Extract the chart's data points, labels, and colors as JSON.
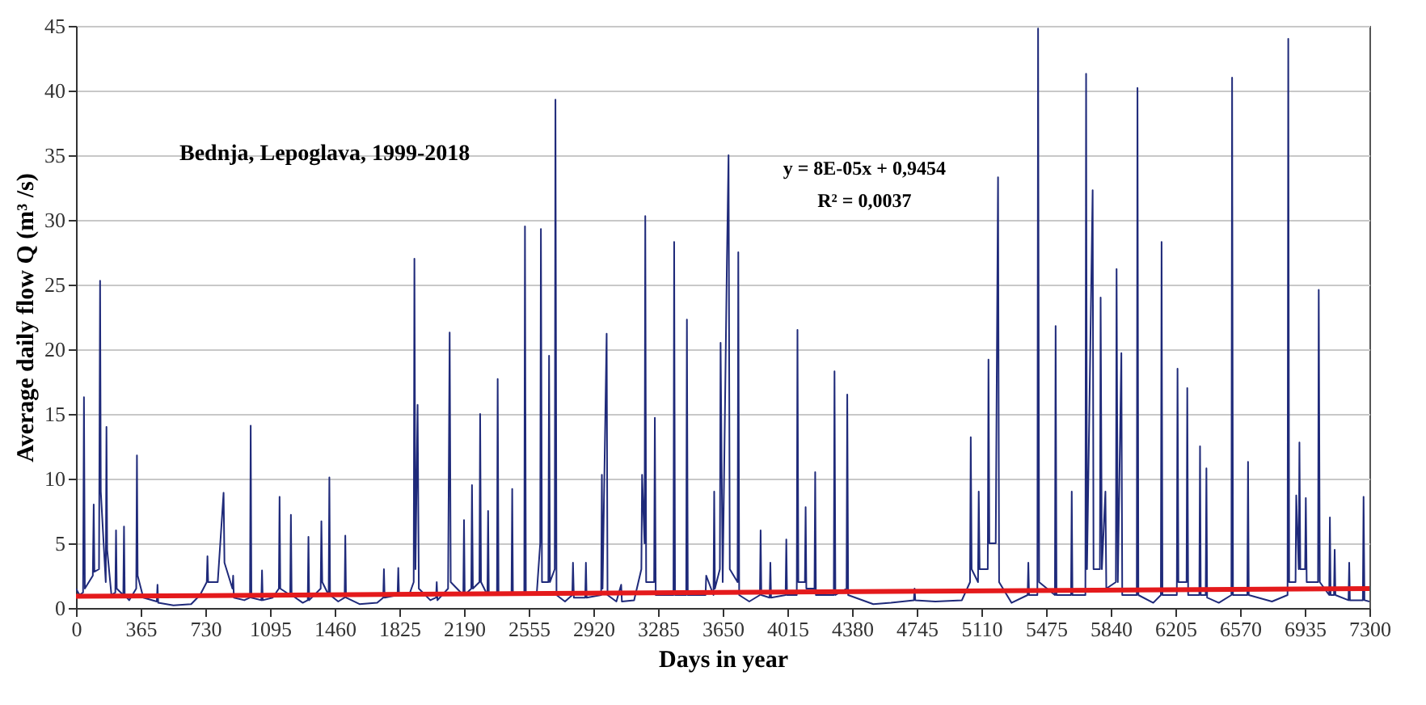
{
  "chart_data": {
    "type": "line",
    "xlabel": "Days in year",
    "ylabel": "Average daily flow Q (m³ /s)",
    "xlim": [
      0,
      7300
    ],
    "xticks": [
      0,
      365,
      730,
      1095,
      1460,
      1825,
      2190,
      2555,
      2920,
      3285,
      3650,
      4015,
      4380,
      4745,
      5110,
      5475,
      5840,
      6205,
      6570,
      6935,
      7300
    ],
    "ylim": [
      0,
      45
    ],
    "yticks": [
      0,
      5,
      10,
      15,
      20,
      25,
      30,
      35,
      40,
      45
    ],
    "grid": "y",
    "annotations": [
      "Bednja, Lepoglava, 1999-2018",
      "y = 8E-05x + 0,9454",
      "R² = 0,0037"
    ],
    "series": [
      {
        "type": "line",
        "color": "#1f2a7a",
        "x": [
          0,
          20,
          40,
          45,
          50,
          95,
          100,
          104,
          130,
          136,
          140,
          168,
          172,
          176,
          200,
          222,
          226,
          230,
          267,
          271,
          275,
          300,
          340,
          344,
          348,
          380,
          456,
          460,
          464,
          550,
          650,
          700,
          738,
          742,
          746,
          800,
          833,
          838,
          883,
          887,
          891,
          950,
          982,
          986,
          990,
          1046,
          1050,
          1054,
          1110,
          1145,
          1149,
          1153,
          1209,
          1213,
          1217,
          1280,
          1308,
          1312,
          1316,
          1381,
          1385,
          1390,
          1426,
          1430,
          1434,
          1480,
          1516,
          1520,
          1524,
          1600,
          1700,
          1734,
          1738,
          1742,
          1815,
          1819,
          1823,
          1880,
          1906,
          1910,
          1916,
          1928,
          1935,
          2000,
          2032,
          2036,
          2040,
          2100,
          2109,
          2115,
          2186,
          2190,
          2194,
          2231,
          2235,
          2240,
          2277,
          2281,
          2286,
          2322,
          2326,
          2330,
          2376,
          2380,
          2385,
          2458,
          2462,
          2466,
          2530,
          2534,
          2539,
          2600,
          2620,
          2624,
          2630,
          2666,
          2670,
          2675,
          2702,
          2706,
          2712,
          2760,
          2801,
          2805,
          2810,
          2874,
          2878,
          2882,
          2964,
          2968,
          2972,
          2995,
          3000,
          3050,
          3077,
          3081,
          3150,
          3191,
          3195,
          3209,
          3213,
          3218,
          3263,
          3267,
          3272,
          3372,
          3376,
          3381,
          3444,
          3448,
          3453,
          3553,
          3557,
          3598,
          3602,
          3606,
          3634,
          3638,
          3650,
          3674,
          3683,
          3690,
          3734,
          3738,
          3743,
          3800,
          3860,
          3864,
          3868,
          3915,
          3919,
          3923,
          4005,
          4009,
          4013,
          4068,
          4072,
          4077,
          4114,
          4118,
          4122,
          4168,
          4172,
          4176,
          4277,
          4281,
          4286,
          4349,
          4353,
          4358,
          4500,
          4600,
          4729,
          4733,
          4737,
          4850,
          5000,
          5046,
          5050,
          5055,
          5091,
          5095,
          5100,
          5146,
          5150,
          5155,
          5191,
          5195,
          5204,
          5210,
          5280,
          5371,
          5375,
          5379,
          5426,
          5430,
          5436,
          5525,
          5529,
          5534,
          5616,
          5620,
          5624,
          5697,
          5701,
          5706,
          5738,
          5743,
          5779,
          5783,
          5790,
          5810,
          5815,
          5869,
          5873,
          5880,
          5900,
          5905,
          5987,
          5991,
          5996,
          6080,
          6123,
          6127,
          6132,
          6213,
          6217,
          6222,
          6268,
          6272,
          6277,
          6340,
          6344,
          6348,
          6376,
          6380,
          6384,
          6450,
          6521,
          6525,
          6530,
          6611,
          6615,
          6619,
          6750,
          6838,
          6842,
          6847,
          6883,
          6887,
          6901,
          6905,
          6910,
          6937,
          6941,
          6946,
          7010,
          7014,
          7020,
          7073,
          7077,
          7081,
          7100,
          7104,
          7108,
          7182,
          7186,
          7190,
          7263,
          7267,
          7272,
          7300
        ],
        "values": [
          1.5,
          1.0,
          1.2,
          16.3,
          1.5,
          2.5,
          8,
          2.8,
          3,
          25.3,
          9,
          2,
          14,
          4.5,
          1,
          1.2,
          6,
          1.5,
          1,
          6.3,
          1,
          0.6,
          1.5,
          11.8,
          2.5,
          0.8,
          0.5,
          1.8,
          0.4,
          0.2,
          0.3,
          1,
          2,
          4,
          2,
          2,
          8.9,
          3.5,
          1.5,
          2.5,
          0.8,
          0.6,
          0.8,
          14.1,
          0.8,
          0.6,
          2.9,
          0.6,
          0.8,
          1.5,
          8.6,
          1.5,
          1,
          7.2,
          1,
          0.4,
          0.6,
          5.5,
          0.6,
          1.5,
          6.7,
          2,
          1,
          10.1,
          1,
          0.5,
          0.8,
          5.6,
          0.8,
          0.3,
          0.4,
          0.8,
          3,
          0.8,
          1,
          3.1,
          1,
          1,
          2,
          27,
          3,
          15.7,
          1.5,
          0.6,
          0.8,
          2,
          0.6,
          1.5,
          21.3,
          2,
          1,
          6.8,
          1,
          1.5,
          9.5,
          1.5,
          2,
          15,
          2,
          1,
          7.5,
          1,
          1,
          17.7,
          1,
          1,
          9.2,
          1,
          1,
          29.5,
          1,
          1,
          5,
          29.3,
          2,
          2,
          19.5,
          2,
          3,
          39.3,
          1,
          0.5,
          1,
          3.5,
          0.8,
          0.8,
          3.5,
          0.8,
          1,
          10.3,
          1.5,
          21.2,
          1,
          0.5,
          1.8,
          0.5,
          0.6,
          3,
          10.3,
          5,
          30.3,
          2,
          2,
          14.7,
          1,
          1,
          28.3,
          1,
          1,
          22.3,
          1,
          1,
          2.5,
          1,
          9,
          1.5,
          3,
          20.5,
          2,
          27,
          35,
          3,
          2,
          27.5,
          1,
          0.5,
          1,
          6,
          1,
          0.8,
          3.5,
          0.8,
          1,
          5.3,
          1,
          1,
          21.5,
          2,
          2,
          7.8,
          1.5,
          1.5,
          10.5,
          1,
          1,
          18.3,
          1,
          1.5,
          16.5,
          1,
          0.3,
          0.4,
          0.6,
          1.5,
          0.6,
          0.5,
          0.6,
          2,
          13.2,
          3,
          2,
          9,
          3,
          3,
          19.2,
          5,
          5,
          14,
          33.3,
          2,
          0.4,
          1,
          3.5,
          1,
          1,
          44.8,
          2,
          1,
          21.8,
          1,
          1,
          9,
          1,
          1,
          41.3,
          3,
          32.3,
          3,
          3,
          24,
          3,
          9,
          1.5,
          2,
          26.2,
          2,
          19.7,
          1,
          1,
          40.2,
          1,
          0.4,
          1,
          28.3,
          1,
          1,
          18.5,
          2,
          2,
          17,
          1,
          1,
          12.5,
          1,
          1,
          10.8,
          0.8,
          0.4,
          1,
          41,
          1,
          1,
          11.3,
          1,
          0.5,
          1,
          44,
          2,
          2,
          8.7,
          3,
          12.8,
          3,
          3,
          8.5,
          2,
          2,
          24.6,
          2,
          1,
          7,
          1,
          1,
          4.5,
          1,
          0.6,
          3.5,
          0.6,
          0.6,
          8.6,
          0.6,
          0.5
        ]
      },
      {
        "type": "line",
        "color": "#e41a1c",
        "x": [
          0,
          7300
        ],
        "values": [
          0.9,
          1.5
        ]
      }
    ]
  }
}
